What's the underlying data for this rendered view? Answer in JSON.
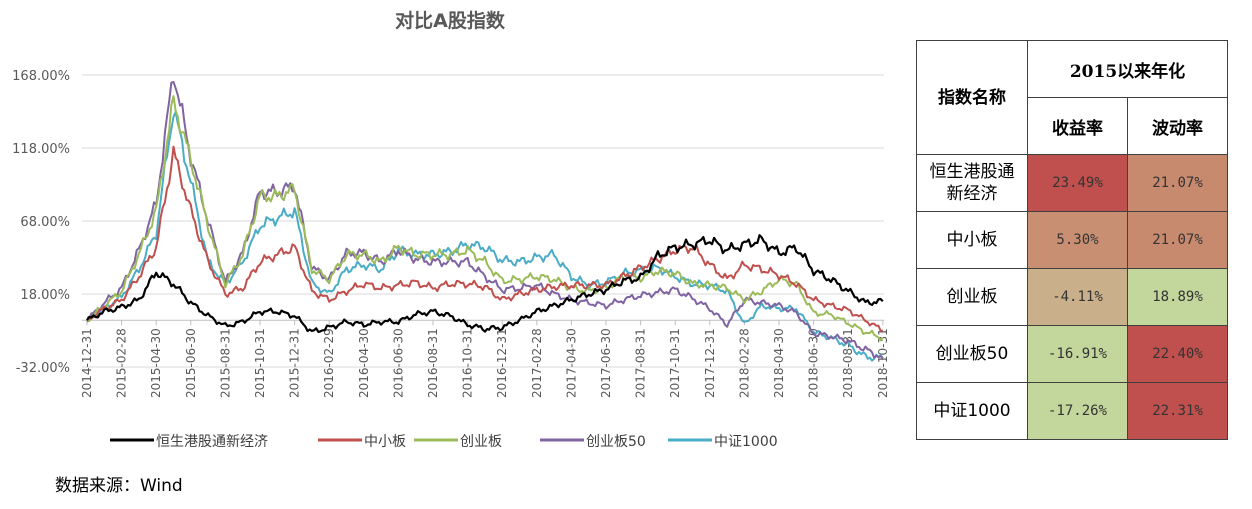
{
  "chart_data": {
    "type": "line",
    "title": "对比A股指数",
    "xlabel": "",
    "ylabel": "",
    "ylim": [
      -32,
      180
    ],
    "yticks": [
      "168.00%",
      "118.00%",
      "68.00%",
      "18.00%",
      "-32.00%"
    ],
    "ytick_values": [
      168,
      118,
      68,
      18,
      -32
    ],
    "xticks": [
      "2014-12-31",
      "2015-02-28",
      "2015-04-30",
      "2015-06-30",
      "2015-08-31",
      "2015-10-31",
      "2015-12-31",
      "2016-02-29",
      "2016-04-30",
      "2016-06-30",
      "2016-08-31",
      "2016-10-31",
      "2016-12-31",
      "2017-02-28",
      "2017-04-30",
      "2017-06-30",
      "2017-08-31",
      "2017-10-31",
      "2017-12-31",
      "2018-02-28",
      "2018-04-30",
      "2018-06-30",
      "2018-08-31",
      "2018-10-31"
    ],
    "x_unit": "months since 2014-12-31",
    "x": [
      0,
      1,
      2,
      3,
      4,
      5,
      6,
      7,
      8,
      9,
      10,
      11,
      12,
      13,
      14,
      15,
      16,
      17,
      18,
      19,
      20,
      21,
      22,
      23,
      24,
      25,
      26,
      27,
      28,
      29,
      30,
      31,
      32,
      33,
      34,
      35,
      36,
      37,
      38,
      39,
      40,
      41,
      42,
      43,
      44,
      45,
      46
    ],
    "grid": true,
    "legend_position": "bottom",
    "series": [
      {
        "name": "恒生港股通新经济",
        "color": "#000000",
        "values": [
          0,
          6,
          9,
          14,
          33,
          25,
          12,
          3,
          -4,
          -1,
          6,
          6,
          3,
          -8,
          -5,
          -1,
          -3,
          -1,
          -1,
          4,
          6,
          3,
          -3,
          -6,
          -5,
          0,
          6,
          10,
          14,
          18,
          21,
          27,
          29,
          44,
          50,
          52,
          55,
          48,
          52,
          55,
          46,
          50,
          34,
          28,
          20,
          12,
          13
        ]
      },
      {
        "name": "中小板",
        "color": "#c0504d",
        "values": [
          0,
          8,
          14,
          30,
          50,
          115,
          75,
          40,
          18,
          22,
          40,
          45,
          50,
          20,
          14,
          20,
          25,
          22,
          24,
          26,
          22,
          25,
          25,
          23,
          14,
          18,
          21,
          23,
          24,
          24,
          24,
          30,
          36,
          42,
          48,
          50,
          38,
          28,
          38,
          35,
          31,
          25,
          14,
          10,
          7,
          0,
          -7
        ]
      },
      {
        "name": "创业板",
        "color": "#9bbb59",
        "values": [
          0,
          10,
          20,
          45,
          75,
          150,
          110,
          65,
          25,
          45,
          85,
          85,
          90,
          35,
          28,
          45,
          45,
          40,
          50,
          45,
          45,
          45,
          48,
          40,
          27,
          28,
          30,
          28,
          22,
          20,
          22,
          30,
          29,
          34,
          32,
          25,
          24,
          22,
          14,
          20,
          28,
          25,
          5,
          4,
          -2,
          -8,
          -12
        ]
      },
      {
        "name": "创业板50",
        "color": "#8064a2",
        "values": [
          0,
          12,
          22,
          48,
          80,
          170,
          112,
          68,
          26,
          46,
          88,
          88,
          92,
          36,
          28,
          46,
          46,
          40,
          48,
          42,
          40,
          40,
          40,
          30,
          21,
          22,
          24,
          18,
          14,
          12,
          10,
          14,
          17,
          19,
          21,
          15,
          8,
          -3,
          14,
          12,
          10,
          5,
          -9,
          -11,
          -14,
          -20,
          -26
        ]
      },
      {
        "name": "中证1000",
        "color": "#4bacc6",
        "values": [
          0,
          8,
          16,
          35,
          60,
          145,
          95,
          40,
          25,
          40,
          65,
          70,
          75,
          25,
          18,
          35,
          38,
          35,
          48,
          45,
          45,
          47,
          52,
          50,
          41,
          40,
          43,
          45,
          30,
          24,
          26,
          32,
          34,
          36,
          30,
          25,
          24,
          20,
          -3,
          10,
          8,
          8,
          -8,
          -12,
          -17,
          -25,
          -26
        ]
      }
    ]
  },
  "table": {
    "header_name": "指数名称",
    "header_group": "2015以来年化",
    "header_return": "收益率",
    "header_vol": "波动率",
    "rows": [
      {
        "name": "恒生港股通新经济",
        "name_line1": "恒生港股通",
        "name_line2": "新经济",
        "return": "23.49%",
        "vol": "21.07%",
        "return_color": "#c0504d",
        "vol_color": "#c88a6e"
      },
      {
        "name": "中小板",
        "return": "5.30%",
        "vol": "21.07%",
        "return_color": "#c88f72",
        "vol_color": "#c88a6e"
      },
      {
        "name": "创业板",
        "return": "-4.11%",
        "vol": "18.89%",
        "return_color": "#c9b08a",
        "vol_color": "#c3d69b"
      },
      {
        "name": "创业板50",
        "return": "-16.91%",
        "vol": "22.40%",
        "return_color": "#c3d69b",
        "vol_color": "#c0504d"
      },
      {
        "name": "中证1000",
        "return": "-17.26%",
        "vol": "22.31%",
        "return_color": "#c3d69b",
        "vol_color": "#c0504d"
      }
    ]
  },
  "source": "数据来源：Wind"
}
